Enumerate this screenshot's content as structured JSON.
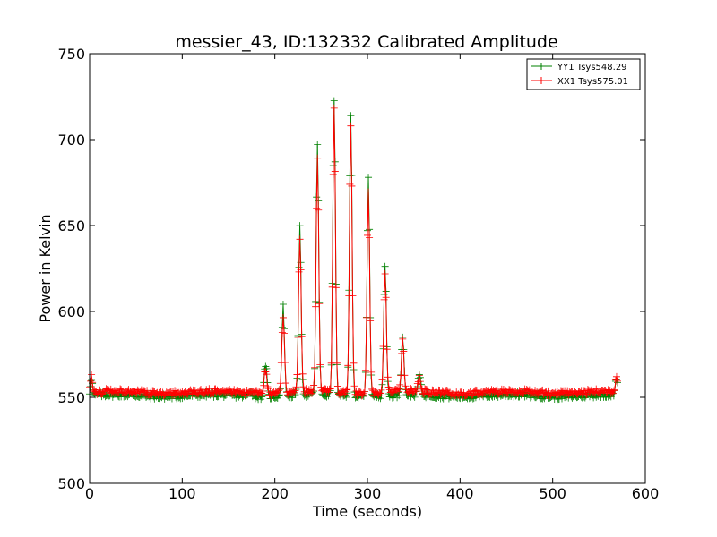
{
  "chart_data": {
    "type": "line",
    "title": "messier_43, ID:132332 Calibrated Amplitude",
    "xlabel": "Time (seconds)",
    "ylabel": "Power in Kelvin",
    "xlim": [
      0,
      600
    ],
    "ylim": [
      500,
      750
    ],
    "xticks": [
      "0",
      "100",
      "200",
      "300",
      "400",
      "500",
      "600"
    ],
    "yticks": [
      "500",
      "550",
      "600",
      "650",
      "700",
      "750"
    ],
    "grid": false,
    "legend_position": "top-right",
    "marker": "+",
    "series": [
      {
        "name": "YY1 Tsys548.29",
        "color": "#008000",
        "baseline": 551,
        "edges": [
          [
            2,
            561
          ],
          [
            569,
            561
          ]
        ],
        "peaks": [
          [
            174,
            555
          ],
          [
            190,
            570
          ],
          [
            209,
            603
          ],
          [
            227,
            648
          ],
          [
            246,
            697
          ],
          [
            264,
            724
          ],
          [
            282,
            715
          ],
          [
            301,
            677
          ],
          [
            319,
            627
          ],
          [
            338,
            586
          ],
          [
            356,
            563
          ]
        ]
      },
      {
        "name": "XX1 Tsys575.01",
        "color": "#ff0000",
        "baseline": 553,
        "edges": [
          [
            2,
            563
          ],
          [
            569,
            563
          ]
        ],
        "peaks": [
          [
            174,
            554
          ],
          [
            190,
            567
          ],
          [
            209,
            597
          ],
          [
            227,
            642
          ],
          [
            246,
            690
          ],
          [
            264,
            717
          ],
          [
            282,
            709
          ],
          [
            301,
            671
          ],
          [
            319,
            622
          ],
          [
            338,
            582
          ],
          [
            356,
            561
          ]
        ]
      }
    ]
  }
}
